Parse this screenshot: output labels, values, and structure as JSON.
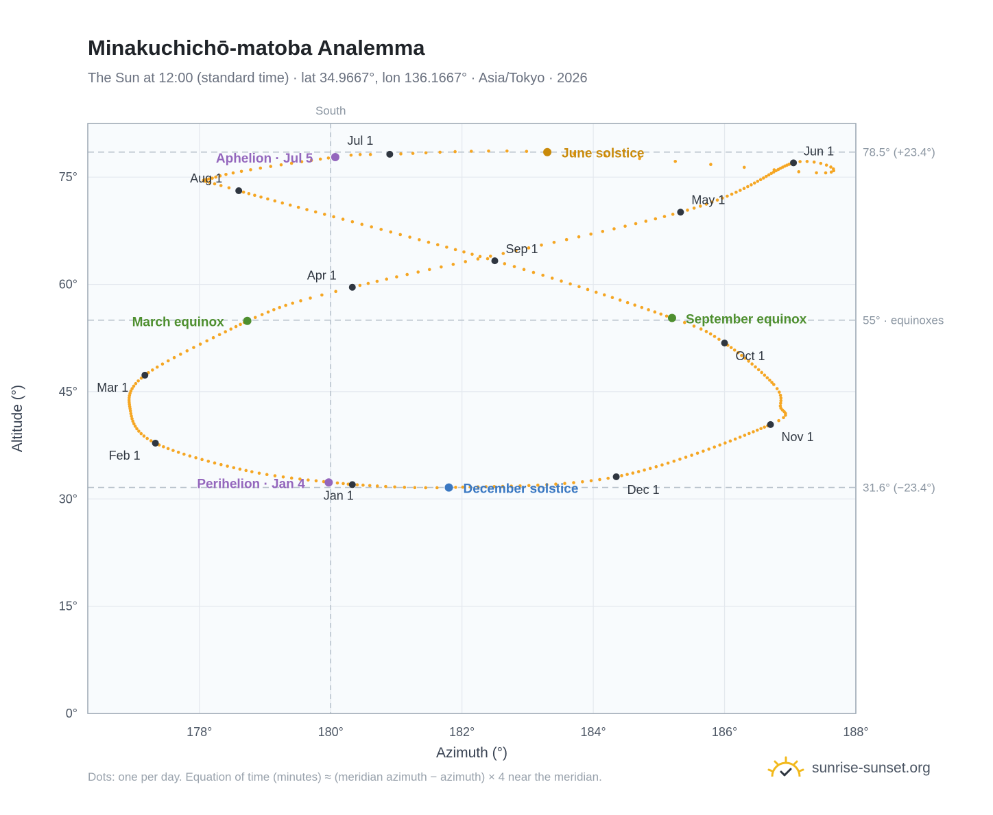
{
  "header": {
    "title": "Minakuchichō-matoba Analemma",
    "subtitle": "The Sun at 12:00 (standard time) · lat 34.9667°, lon 136.1667° · Asia/Tokyo · 2026"
  },
  "footer": {
    "note": "Dots: one per day. Equation of time (minutes) ≈ (meridian azimuth − azimuth) × 4 near the meridian.",
    "brand": "sunrise-sunset.org",
    "brand_icon": "sun-logo-icon"
  },
  "chart_data": {
    "type": "scatter",
    "xlabel": "Azimuth (°)",
    "ylabel": "Altitude (°)",
    "xlim": [
      176.3,
      188
    ],
    "ylim": [
      0,
      82.5
    ],
    "xticks": [
      {
        "v": 178,
        "label": "178°"
      },
      {
        "v": 180,
        "label": "180°"
      },
      {
        "v": 182,
        "label": "182°"
      },
      {
        "v": 184,
        "label": "184°"
      },
      {
        "v": 186,
        "label": "186°"
      },
      {
        "v": 188,
        "label": "188°"
      }
    ],
    "yticks": [
      {
        "v": 0,
        "label": "0°"
      },
      {
        "v": 15,
        "label": "15°"
      },
      {
        "v": 30,
        "label": "30°"
      },
      {
        "v": 45,
        "label": "45°"
      },
      {
        "v": 60,
        "label": "60°"
      },
      {
        "v": 75,
        "label": "75°"
      }
    ],
    "grid": true,
    "meridian": {
      "azimuth": 180,
      "label": "South"
    },
    "reference_lines": [
      {
        "altitude": 78.5,
        "label": "78.5° (+23.4°)"
      },
      {
        "altitude": 55,
        "label": "55° · equinoxes"
      },
      {
        "altitude": 31.6,
        "label": "31.6° (−23.4°)"
      }
    ],
    "colors": {
      "curve": "#f5a623",
      "month": "#2f3640",
      "equinox": "#4e8f2f",
      "june_solstice": "#c98a0a",
      "december_solstice": "#3a78c2",
      "apsis": "#9467bd"
    },
    "anchors": [
      {
        "day": 1,
        "az": 180.33,
        "alt": 32.0
      },
      {
        "day": 32,
        "az": 177.33,
        "alt": 37.8
      },
      {
        "day": 60,
        "az": 177.17,
        "alt": 47.3
      },
      {
        "day": 79,
        "az": 178.73,
        "alt": 54.9
      },
      {
        "day": 91,
        "az": 180.33,
        "alt": 59.6
      },
      {
        "day": 121,
        "az": 185.33,
        "alt": 70.1
      },
      {
        "day": 152,
        "az": 187.05,
        "alt": 77.0
      },
      {
        "day": 163,
        "az": 187.4,
        "alt": 75.6
      },
      {
        "day": 172,
        "az": 183.3,
        "alt": 78.5
      },
      {
        "day": 182,
        "az": 180.9,
        "alt": 78.2
      },
      {
        "day": 186,
        "az": 180.07,
        "alt": 77.8
      },
      {
        "day": 200,
        "az": 178.25,
        "alt": 75.0
      },
      {
        "day": 213,
        "az": 178.6,
        "alt": 73.1
      },
      {
        "day": 244,
        "az": 182.5,
        "alt": 63.3
      },
      {
        "day": 266,
        "az": 185.2,
        "alt": 55.3
      },
      {
        "day": 274,
        "az": 186.0,
        "alt": 51.8
      },
      {
        "day": 290,
        "az": 186.75,
        "alt": 46.0
      },
      {
        "day": 297,
        "az": 186.85,
        "alt": 43.0
      },
      {
        "day": 305,
        "az": 186.7,
        "alt": 40.4
      },
      {
        "day": 335,
        "az": 184.35,
        "alt": 33.1
      },
      {
        "day": 355,
        "az": 181.8,
        "alt": 31.6
      },
      {
        "day": 366,
        "az": 180.33,
        "alt": 32.0
      }
    ],
    "left_loop": [
      {
        "day": 1,
        "az": 180.33,
        "alt": 32.0
      },
      {
        "day": 15,
        "az": 178.8,
        "alt": 33.8
      },
      {
        "day": 32,
        "az": 177.33,
        "alt": 37.8
      },
      {
        "day": 45,
        "az": 176.95,
        "alt": 42.3
      },
      {
        "day": 60,
        "az": 177.17,
        "alt": 47.3
      },
      {
        "day": 79,
        "az": 178.73,
        "alt": 54.9
      }
    ],
    "months": [
      {
        "label": "Jan 1",
        "az": 180.33,
        "alt": 32.0
      },
      {
        "label": "Feb 1",
        "az": 177.33,
        "alt": 37.8
      },
      {
        "label": "Mar 1",
        "az": 177.17,
        "alt": 47.3
      },
      {
        "label": "Apr 1",
        "az": 180.33,
        "alt": 59.6
      },
      {
        "label": "May 1",
        "az": 185.33,
        "alt": 70.1
      },
      {
        "label": "Jun 1",
        "az": 187.05,
        "alt": 77.0
      },
      {
        "label": "Jul 1",
        "az": 180.9,
        "alt": 78.2
      },
      {
        "label": "Aug 1",
        "az": 178.6,
        "alt": 73.1
      },
      {
        "label": "Sep 1",
        "az": 182.5,
        "alt": 63.3
      },
      {
        "label": "Oct 1",
        "az": 186.0,
        "alt": 51.8
      },
      {
        "label": "Nov 1",
        "az": 186.7,
        "alt": 40.4
      },
      {
        "label": "Dec 1",
        "az": 184.35,
        "alt": 33.1
      }
    ],
    "events": [
      {
        "label": "March equinox",
        "az": 178.73,
        "alt": 54.9,
        "kind": "equinox"
      },
      {
        "label": "September equinox",
        "az": 185.2,
        "alt": 55.3,
        "kind": "equinox"
      },
      {
        "label": "June solstice",
        "az": 183.3,
        "alt": 78.5,
        "kind": "june_solstice"
      },
      {
        "label": "December solstice",
        "az": 181.8,
        "alt": 31.6,
        "kind": "december_solstice"
      },
      {
        "label": "Aphelion · Jul 5",
        "az": 180.07,
        "alt": 77.8,
        "kind": "apsis"
      },
      {
        "label": "Perihelion · Jan 4",
        "az": 179.97,
        "alt": 32.3,
        "kind": "apsis"
      }
    ]
  }
}
